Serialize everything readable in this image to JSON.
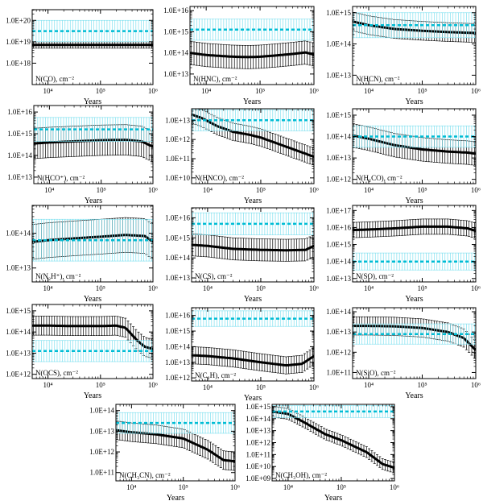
{
  "figure": {
    "colors": {
      "model": "#000000",
      "observed": "#00bcd4",
      "observed_band": "#7fe0ef",
      "errorbar": "#000000"
    }
  },
  "chart_data": [
    {
      "type": "line",
      "ylabel": "N(CO), cm⁻²",
      "xlabel": "Years",
      "xlim": [
        5000,
        1000000
      ],
      "xscale": "log",
      "xticks": [
        "10⁴",
        "10⁵",
        "10⁶"
      ],
      "ylim": [
        17,
        20.5
      ],
      "yscale": "log",
      "yticks": [
        "1.0E+18",
        "1.0E+19",
        "1.0E+20"
      ],
      "ytick_exps": [
        18,
        19,
        20
      ],
      "series": [
        {
          "role": "model",
          "x": [
            5000,
            20000,
            100000,
            500000,
            1000000
          ],
          "y": [
            18.85,
            18.85,
            18.85,
            18.85,
            18.85
          ],
          "err": 0.15
        },
        {
          "role": "observed",
          "x": [
            5000,
            1000000
          ],
          "y": [
            19.5,
            19.5
          ],
          "err": 0.5
        }
      ]
    },
    {
      "type": "line",
      "ylabel": "N(HNC), cm⁻²",
      "xlabel": "Years",
      "xlim": [
        5000,
        1000000
      ],
      "xscale": "log",
      "xticks": [
        "10⁴",
        "10⁵",
        "10⁶"
      ],
      "ylim": [
        12.5,
        16.2
      ],
      "yscale": "log",
      "yticks": [
        "1.0E+13",
        "1.0E+14",
        "1.0E+15",
        "1.0E+16"
      ],
      "ytick_exps": [
        13,
        14,
        15,
        16
      ],
      "series": [
        {
          "role": "model",
          "x": [
            5000,
            10000,
            30000,
            60000,
            100000,
            200000,
            400000,
            700000,
            1000000
          ],
          "y": [
            14.0,
            13.9,
            13.82,
            13.8,
            13.82,
            13.88,
            13.95,
            14.02,
            13.92
          ],
          "err": 0.55
        },
        {
          "role": "observed",
          "x": [
            5000,
            1000000
          ],
          "y": [
            15.1,
            15.1
          ],
          "err": 0.5
        }
      ]
    },
    {
      "type": "line",
      "ylabel": "N(HCN), cm⁻²",
      "xlabel": "Years",
      "xlim": [
        5000,
        1000000
      ],
      "xscale": "log",
      "xticks": [
        "10⁴",
        "10⁵",
        "10⁶"
      ],
      "ylim": [
        12.7,
        15.2
      ],
      "yscale": "log",
      "yticks": [
        "1.0E+13",
        "1.0E+14",
        "1.0E+15"
      ],
      "ytick_exps": [
        13,
        14,
        15
      ],
      "series": [
        {
          "role": "model",
          "x": [
            5000,
            10000,
            30000,
            100000,
            300000,
            1000000
          ],
          "y": [
            14.72,
            14.6,
            14.48,
            14.42,
            14.38,
            14.35
          ],
          "err": 0.3
        },
        {
          "role": "observed",
          "x": [
            5000,
            1000000
          ],
          "y": [
            14.6,
            14.6
          ],
          "err": 0.4
        }
      ]
    },
    {
      "type": "line",
      "ylabel": "N(HCO⁺), cm⁻²",
      "xlabel": "Years",
      "xlim": [
        5000,
        1000000
      ],
      "xscale": "log",
      "xticks": [
        "10⁴",
        "10⁵",
        "10⁶"
      ],
      "ylim": [
        12.7,
        16.3
      ],
      "yscale": "log",
      "yticks": [
        "1.0E+13",
        "1.0E+14",
        "1.0E+15",
        "1.0E+16"
      ],
      "ytick_exps": [
        13,
        14,
        15,
        16
      ],
      "series": [
        {
          "role": "model",
          "x": [
            5000,
            10000,
            30000,
            100000,
            300000,
            600000,
            1000000
          ],
          "y": [
            14.55,
            14.6,
            14.65,
            14.7,
            14.72,
            14.65,
            14.4
          ],
          "err": 0.7
        },
        {
          "role": "observed",
          "x": [
            5000,
            1000000
          ],
          "y": [
            15.2,
            15.2
          ],
          "err": 0.55
        }
      ]
    },
    {
      "type": "line",
      "ylabel": "N(HNCO), cm⁻²",
      "xlabel": "Years",
      "xlim": [
        5000,
        1000000
      ],
      "xscale": "log",
      "xticks": [
        "10⁴",
        "10⁵",
        "10⁶"
      ],
      "ylim": [
        9.7,
        13.6
      ],
      "yscale": "log",
      "yticks": [
        "1.0E+10",
        "1.0E+11",
        "1.0E+12",
        "1.0E+13"
      ],
      "ytick_exps": [
        10,
        11,
        12,
        13
      ],
      "series": [
        {
          "role": "model",
          "x": [
            5000,
            8000,
            15000,
            30000,
            60000,
            100000,
            200000,
            400000,
            1000000
          ],
          "y": [
            13.3,
            13.1,
            12.7,
            12.4,
            12.25,
            12.1,
            11.8,
            11.5,
            11.1
          ],
          "err": 0.45
        },
        {
          "role": "observed",
          "x": [
            5000,
            1000000
          ],
          "y": [
            13.0,
            13.0
          ],
          "err": 0.55
        }
      ]
    },
    {
      "type": "line",
      "ylabel": "N(H₂CO), cm⁻²",
      "xlabel": "Years",
      "xlim": [
        5000,
        1000000
      ],
      "xscale": "log",
      "xticks": [
        "10⁴",
        "10⁵",
        "10⁶"
      ],
      "ylim": [
        11.8,
        15.3
      ],
      "yscale": "log",
      "yticks": [
        "1.0E+12",
        "1.0E+13",
        "1.0E+14",
        "1.0E+15"
      ],
      "ytick_exps": [
        12,
        13,
        14,
        15
      ],
      "series": [
        {
          "role": "model",
          "x": [
            5000,
            10000,
            30000,
            100000,
            300000,
            700000,
            1000000
          ],
          "y": [
            14.05,
            13.9,
            13.6,
            13.4,
            13.3,
            13.25,
            13.2
          ],
          "err": 0.55
        },
        {
          "role": "observed",
          "x": [
            5000,
            1000000
          ],
          "y": [
            14.0,
            14.0
          ],
          "err": 0.5
        }
      ]
    },
    {
      "type": "line",
      "ylabel": "N(N₂H⁺), cm⁻²",
      "xlabel": "Years",
      "xlim": [
        5000,
        1000000
      ],
      "xscale": "log",
      "xticks": [
        "10⁴",
        "10⁵",
        "10⁶"
      ],
      "ylim": [
        12.6,
        14.8
      ],
      "yscale": "log",
      "yticks": [
        "1.0E+13",
        "1.0E+14"
      ],
      "ytick_exps": [
        13,
        14
      ],
      "series": [
        {
          "role": "model",
          "x": [
            5000,
            10000,
            30000,
            100000,
            300000,
            700000,
            1000000
          ],
          "y": [
            13.75,
            13.8,
            13.85,
            13.9,
            13.95,
            13.92,
            13.75
          ],
          "err": 0.5
        },
        {
          "role": "observed",
          "x": [
            5000,
            1000000
          ],
          "y": [
            13.8,
            13.8
          ],
          "err": 0.6
        }
      ]
    },
    {
      "type": "line",
      "ylabel": "N(CS), cm⁻²",
      "xlabel": "Years",
      "xlim": [
        5000,
        1000000
      ],
      "xscale": "log",
      "xticks": [
        "10⁴",
        "10⁵",
        "10⁶"
      ],
      "ylim": [
        12.8,
        16.5
      ],
      "yscale": "log",
      "yticks": [
        "1.0E+13",
        "1.0E+14",
        "1.0E+15",
        "1.0E+16"
      ],
      "ytick_exps": [
        13,
        14,
        15,
        16
      ],
      "series": [
        {
          "role": "model",
          "x": [
            5000,
            10000,
            30000,
            100000,
            300000,
            700000,
            1000000
          ],
          "y": [
            14.65,
            14.6,
            14.45,
            14.4,
            14.38,
            14.4,
            14.6
          ],
          "err": 0.55
        },
        {
          "role": "observed",
          "x": [
            5000,
            1000000
          ],
          "y": [
            15.7,
            15.7
          ],
          "err": 0.55
        }
      ]
    },
    {
      "type": "line",
      "ylabel": "N(SO), cm⁻²",
      "xlabel": "Years",
      "xlim": [
        5000,
        1000000
      ],
      "xscale": "log",
      "xticks": [
        "10⁴",
        "10⁵",
        "10⁶"
      ],
      "ylim": [
        12.8,
        17.3
      ],
      "yscale": "log",
      "yticks": [
        "1.0E+13",
        "1.0E+14",
        "1.0E+15",
        "1.0E+16",
        "1.0E+17"
      ],
      "ytick_exps": [
        13,
        14,
        15,
        16,
        17
      ],
      "series": [
        {
          "role": "model",
          "x": [
            5000,
            10000,
            30000,
            100000,
            300000,
            700000,
            1000000
          ],
          "y": [
            15.85,
            15.88,
            15.95,
            16.05,
            16.05,
            15.95,
            15.8
          ],
          "err": 0.45
        },
        {
          "role": "observed",
          "x": [
            5000,
            1000000
          ],
          "y": [
            14.0,
            14.0
          ],
          "err": 0.5
        }
      ]
    },
    {
      "type": "line",
      "ylabel": "N(OCS), cm⁻²",
      "xlabel": "Years",
      "xlim": [
        5000,
        1000000
      ],
      "xscale": "log",
      "xticks": [
        "10⁴",
        "10⁵",
        "10⁶"
      ],
      "ylim": [
        11.8,
        15.3
      ],
      "yscale": "log",
      "yticks": [
        "1.0E+12",
        "1.0E+13",
        "1.0E+14",
        "1.0E+15"
      ],
      "ytick_exps": [
        12,
        13,
        14,
        15
      ],
      "series": [
        {
          "role": "model",
          "x": [
            5000,
            10000,
            30000,
            100000,
            200000,
            300000,
            500000,
            700000,
            1000000
          ],
          "y": [
            14.3,
            14.3,
            14.28,
            14.28,
            14.3,
            14.2,
            13.6,
            13.3,
            13.2
          ],
          "err": 0.45
        },
        {
          "role": "observed",
          "x": [
            5000,
            1000000
          ],
          "y": [
            13.1,
            13.1
          ],
          "err": 0.5
        }
      ]
    },
    {
      "type": "line",
      "ylabel": "N(C₂H), cm⁻²",
      "xlabel": "Years",
      "xlim": [
        5000,
        1000000
      ],
      "xscale": "log",
      "xticks": [
        "10⁴",
        "10⁵",
        "10⁶"
      ],
      "ylim": [
        11.8,
        16.5
      ],
      "yscale": "log",
      "yticks": [
        "1.0E+12",
        "1.0E+13",
        "1.0E+14",
        "1.0E+15",
        "1.0E+16"
      ],
      "ytick_exps": [
        12,
        13,
        14,
        15,
        16
      ],
      "series": [
        {
          "role": "model",
          "x": [
            5000,
            10000,
            30000,
            100000,
            300000,
            600000,
            1000000
          ],
          "y": [
            13.45,
            13.4,
            13.25,
            13.0,
            12.8,
            12.9,
            13.4
          ],
          "err": 0.55
        },
        {
          "role": "observed",
          "x": [
            5000,
            1000000
          ],
          "y": [
            15.8,
            15.8
          ],
          "err": 0.5
        }
      ]
    },
    {
      "type": "line",
      "ylabel": "N(SiO), cm⁻²",
      "xlabel": "Years",
      "xlim": [
        5000,
        1000000
      ],
      "xscale": "log",
      "xticks": [
        "10⁴",
        "10⁵",
        "10⁶"
      ],
      "ylim": [
        10.7,
        14.2
      ],
      "yscale": "log",
      "yticks": [
        "1.0E+11",
        "1.0E+12",
        "1.0E+13",
        "1.0E+14"
      ],
      "ytick_exps": [
        11,
        12,
        13,
        14
      ],
      "series": [
        {
          "role": "model",
          "x": [
            5000,
            10000,
            30000,
            100000,
            300000,
            600000,
            1000000
          ],
          "y": [
            13.3,
            13.3,
            13.28,
            13.2,
            13.0,
            12.7,
            12.1
          ],
          "err": 0.45
        },
        {
          "role": "observed",
          "x": [
            5000,
            1000000
          ],
          "y": [
            12.9,
            12.9
          ],
          "err": 0.5
        }
      ]
    },
    {
      "type": "line",
      "ylabel": "N(CH₃CN), cm⁻²",
      "xlabel": "Years",
      "xlim": [
        5000,
        1000000
      ],
      "xscale": "log",
      "xticks": [
        "10⁴",
        "10⁵",
        "10⁶"
      ],
      "ylim": [
        10.6,
        14.3
      ],
      "yscale": "log",
      "yticks": [
        "1.0E+11",
        "1.0E+12",
        "1.0E+13",
        "1.0E+14"
      ],
      "ytick_exps": [
        11,
        12,
        13,
        14
      ],
      "series": [
        {
          "role": "model",
          "x": [
            5000,
            10000,
            30000,
            100000,
            300000,
            600000,
            1000000
          ],
          "y": [
            13.05,
            12.95,
            12.85,
            12.65,
            12.1,
            11.6,
            11.55
          ],
          "err": 0.45
        },
        {
          "role": "observed",
          "x": [
            5000,
            1000000
          ],
          "y": [
            13.4,
            13.4
          ],
          "err": 0.5
        }
      ]
    },
    {
      "type": "line",
      "ylabel": "N(CH₃OH), cm⁻²",
      "xlabel": "Years",
      "xlim": [
        5000,
        1000000
      ],
      "xscale": "log",
      "xticks": [
        "10⁴",
        "10⁵",
        "10⁶"
      ],
      "ylim": [
        8.8,
        15.2
      ],
      "yscale": "log",
      "yticks": [
        "1.0E+09",
        "1.0E+10",
        "1.0E+11",
        "1.0E+12",
        "1.0E+13",
        "1.0E+14",
        "1.0E+15"
      ],
      "ytick_exps": [
        9,
        10,
        11,
        12,
        13,
        14,
        15
      ],
      "series": [
        {
          "role": "model",
          "x": [
            5000,
            10000,
            20000,
            50000,
            100000,
            300000,
            600000,
            1000000
          ],
          "y": [
            14.6,
            14.4,
            13.7,
            12.7,
            12.2,
            11.2,
            10.2,
            9.9
          ],
          "err": 0.45
        },
        {
          "role": "observed",
          "x": [
            5000,
            1000000
          ],
          "y": [
            14.6,
            14.6
          ],
          "err": 0.5
        }
      ]
    }
  ]
}
